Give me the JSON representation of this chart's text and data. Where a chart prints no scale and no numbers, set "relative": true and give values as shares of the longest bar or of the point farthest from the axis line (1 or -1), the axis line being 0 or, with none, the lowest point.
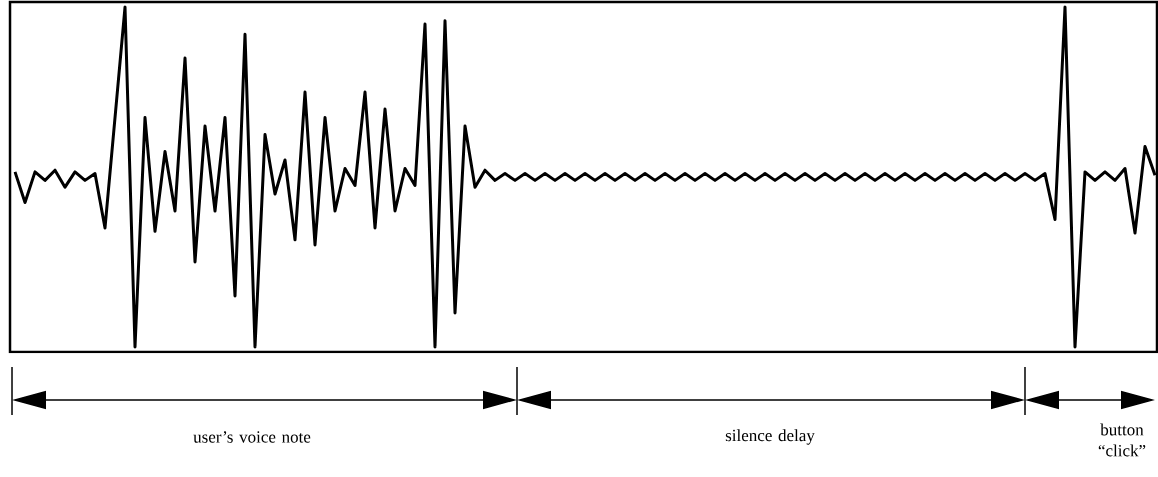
{
  "chart_data": {
    "type": "line",
    "relative": true,
    "color": "#000000",
    "categories": [
      null,
      null,
      null,
      null,
      null,
      null,
      null,
      null,
      null,
      null,
      null,
      null,
      null,
      null,
      null,
      null,
      null,
      null,
      null,
      null,
      null,
      null,
      null,
      null,
      null,
      null,
      null,
      null,
      null,
      null,
      null,
      null,
      null,
      null,
      null,
      null,
      null,
      null,
      null,
      null,
      null,
      null,
      null,
      null,
      null,
      null,
      null,
      null,
      null,
      null,
      null,
      null,
      null,
      null,
      null,
      null,
      null,
      null,
      null,
      null,
      null,
      null,
      null,
      null,
      null,
      null,
      null,
      null,
      null,
      null,
      null,
      null,
      null,
      null,
      null,
      null,
      null,
      null,
      null,
      null,
      null,
      null,
      null,
      null,
      null,
      null,
      null,
      null,
      null,
      null,
      null,
      null,
      null,
      null,
      null,
      null,
      null,
      null,
      null,
      null,
      null,
      null,
      null,
      null,
      null,
      null,
      null,
      null,
      null,
      null,
      null,
      null,
      null,
      null,
      null
    ],
    "values": [
      0.515,
      0.425,
      0.515,
      0.49,
      0.52,
      0.47,
      0.515,
      0.49,
      0.51,
      0.35,
      0.675,
      1,
      0,
      0.675,
      0.34,
      0.575,
      0.4,
      0.85,
      0.25,
      0.65,
      0.4,
      0.675,
      0.15,
      0.92,
      0,
      0.625,
      0.45,
      0.55,
      0.315,
      0.75,
      0.3,
      0.675,
      0.4,
      0.525,
      0.475,
      0.75,
      0.35,
      0.7,
      0.4,
      0.525,
      0.475,
      0.95,
      0,
      0.96,
      0.1,
      0.65,
      0.47,
      0.52,
      0.49,
      0.51,
      0.49,
      0.51,
      0.49,
      0.51,
      0.49,
      0.51,
      0.49,
      0.51,
      0.49,
      0.51,
      0.49,
      0.51,
      0.49,
      0.51,
      0.49,
      0.51,
      0.49,
      0.51,
      0.49,
      0.51,
      0.49,
      0.51,
      0.49,
      0.51,
      0.49,
      0.51,
      0.49,
      0.51,
      0.49,
      0.51,
      0.49,
      0.51,
      0.49,
      0.51,
      0.49,
      0.51,
      0.49,
      0.51,
      0.49,
      0.51,
      0.49,
      0.51,
      0.49,
      0.51,
      0.49,
      0.51,
      0.49,
      0.51,
      0.49,
      0.51,
      0.49,
      0.51,
      0.49,
      0.51,
      0.375,
      1,
      0,
      0.515,
      0.49,
      0.515,
      0.49,
      0.525,
      0.335,
      0.59,
      0.505
    ],
    "annotations": [
      "user’s voice note",
      "silence delay",
      "button “click”"
    ]
  }
}
